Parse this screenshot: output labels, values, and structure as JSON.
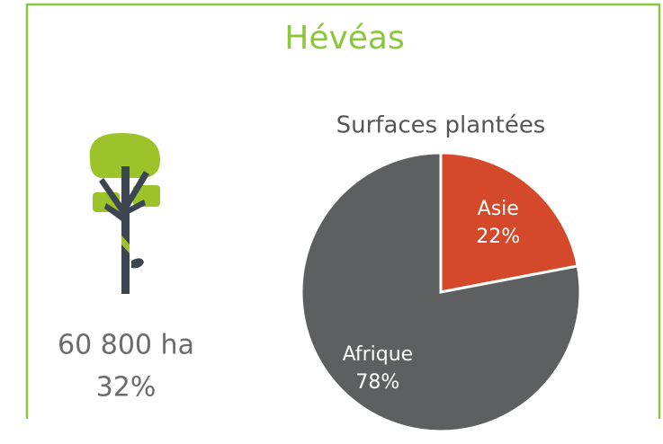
{
  "header": {
    "title": "Hévéas"
  },
  "stat": {
    "area": "60 800 ha",
    "share": "32%"
  },
  "chart_data": {
    "type": "pie",
    "title": "Surfaces plantées",
    "categories": [
      "Asie",
      "Afrique"
    ],
    "values": [
      22,
      78
    ],
    "value_labels": [
      "22%",
      "78%"
    ],
    "colors": [
      "#d4492a",
      "#5e5f61"
    ]
  }
}
